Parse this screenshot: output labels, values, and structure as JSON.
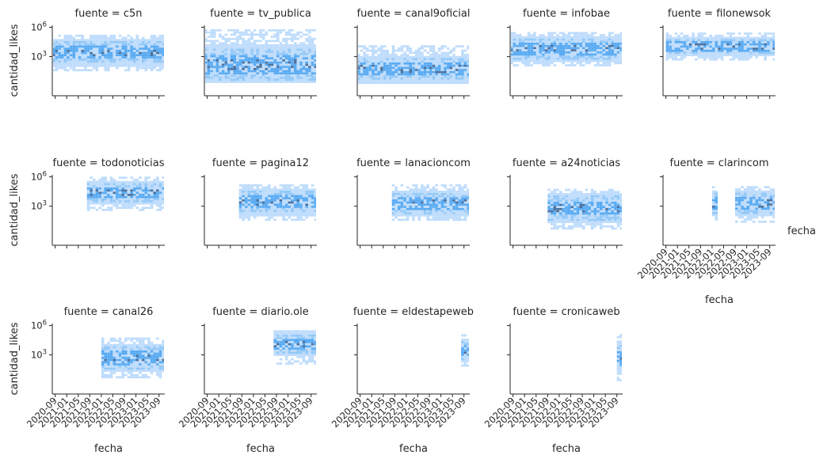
{
  "chart_data": {
    "type": "heatmap",
    "description_type": "faceted 2D histogram grid",
    "colors": {
      "light": "#a8d0fb",
      "mid": "#3b9bf0",
      "dark": "#1f4e85",
      "axis": "#262626"
    },
    "xlabel": "fecha",
    "ylabel": "cantidad_likes",
    "y_scale": "log",
    "y_ticks": [
      {
        "base": "10",
        "exp": "6"
      },
      {
        "base": "10",
        "exp": "3"
      }
    ],
    "x_ticks": [
      "2020-09",
      "2021-01",
      "2021-05",
      "2021-09",
      "2022-01",
      "2022-05",
      "2022-09",
      "2023-01",
      "2023-05",
      "2023-09"
    ],
    "x_range": [
      "2020-08",
      "2023-11"
    ],
    "facet_prefix": "fuente = ",
    "panels": [
      {
        "name": "c5n",
        "start": "2020-07",
        "end": "2023-11",
        "y_low": 1.5,
        "y_high": 5.2,
        "y_center": 3.3
      },
      {
        "name": "tv_publica",
        "start": "2020-07",
        "end": "2023-11",
        "y_low": 0.3,
        "y_high": 5.6,
        "y_center": 2.1
      },
      {
        "name": "canal9oficial",
        "start": "2020-07",
        "end": "2023-11",
        "y_low": 0.2,
        "y_high": 4.0,
        "y_center": 1.6
      },
      {
        "name": "infobae",
        "start": "2020-07",
        "end": "2023-11",
        "y_low": 2.0,
        "y_high": 5.5,
        "y_center": 3.7
      },
      {
        "name": "filonewsok",
        "start": "2020-09",
        "end": "2023-11",
        "y_low": 2.6,
        "y_high": 5.4,
        "y_center": 3.9
      },
      {
        "name": "todonoticias",
        "start": "2021-08",
        "end": "2023-11",
        "y_low": 2.5,
        "y_high": 5.8,
        "y_center": 4.2
      },
      {
        "name": "pagina12",
        "start": "2021-08",
        "end": "2023-11",
        "y_low": 1.5,
        "y_high": 5.2,
        "y_center": 3.3
      },
      {
        "name": "lanacioncom",
        "start": "2021-08",
        "end": "2023-11",
        "y_low": 1.5,
        "y_high": 5.1,
        "y_center": 3.2
      },
      {
        "name": "a24noticias",
        "start": "2021-09",
        "end": "2023-11",
        "y_low": 0.6,
        "y_high": 4.7,
        "y_center": 2.7
      },
      {
        "name": "clarincom",
        "start": "2022-01",
        "end": "2023-11",
        "y_low": 1.3,
        "y_high": 5.0,
        "y_center": 3.2,
        "gap": [
          "2022-03",
          "2022-09"
        ]
      },
      {
        "name": "canal26",
        "start": "2022-01",
        "end": "2023-11",
        "y_low": 0.6,
        "y_high": 4.6,
        "y_center": 2.6
      },
      {
        "name": "diario.ole",
        "start": "2022-08",
        "end": "2023-11",
        "y_low": 2.0,
        "y_high": 5.5,
        "y_center": 4.0
      },
      {
        "name": "eldestapeweb",
        "start": "2023-08",
        "end": "2023-11",
        "y_low": 1.8,
        "y_high": 5.0,
        "y_center": 3.4
      },
      {
        "name": "cronicaweb",
        "start": "2023-09",
        "end": "2023-11",
        "y_low": 0.3,
        "y_high": 5.0,
        "y_center": 2.6
      }
    ]
  }
}
